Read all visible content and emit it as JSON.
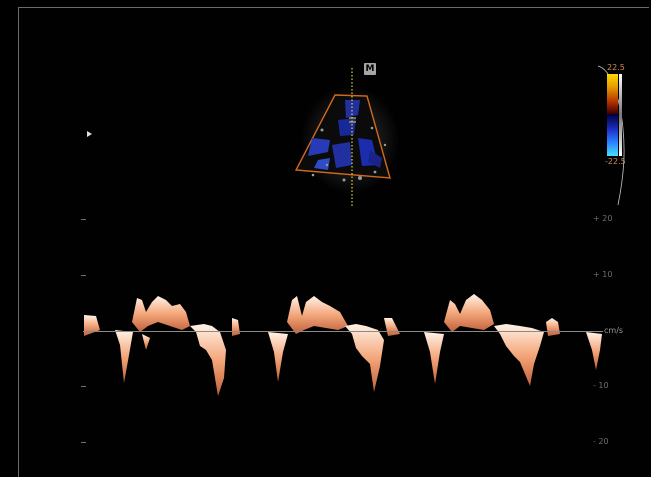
{
  "marker": {
    "label": "M"
  },
  "color_scale": {
    "max_label": "22.5",
    "min_label": "-22.5"
  },
  "velocity_axis": {
    "unit": "cm/s",
    "ticks": [
      {
        "label": "+ 20",
        "value": 20
      },
      {
        "label": "+ 10",
        "value": 10
      },
      {
        "label": "- 10",
        "value": -10
      },
      {
        "label": "- 20",
        "value": -20
      }
    ]
  },
  "colors": {
    "sector_outline": "#d2691e",
    "doppler_flow": "#2233aa",
    "spectral_trace": "#f2b08a",
    "cursor_line": "#e6d23a"
  }
}
